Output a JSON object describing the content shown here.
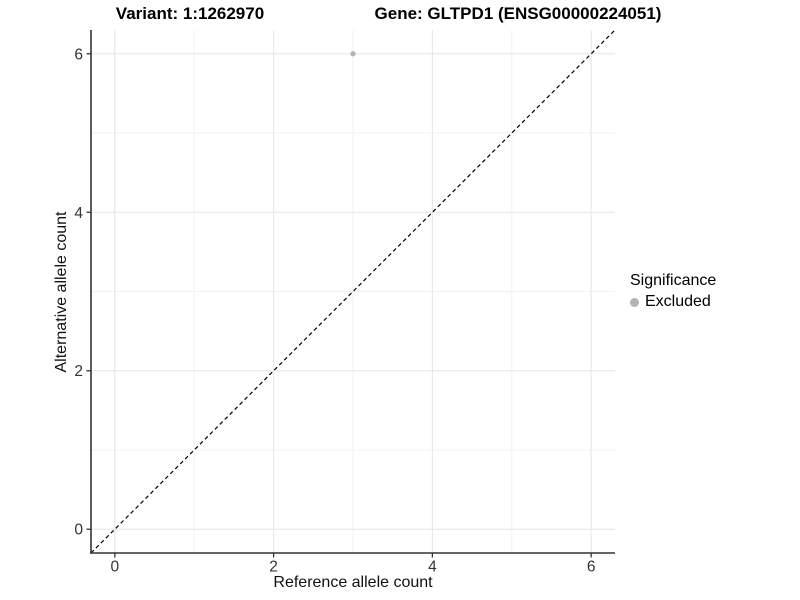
{
  "titles": {
    "variant": "Variant: 1:1262970",
    "gene": "Gene: GLTPD1 (ENSG00000224051)"
  },
  "chart_data": {
    "type": "scatter",
    "xlabel": "Reference allele count",
    "ylabel": "Alternative allele count",
    "xlim": [
      -0.3,
      6.3
    ],
    "ylim": [
      -0.3,
      6.3
    ],
    "x_ticks": [
      0,
      2,
      4,
      6
    ],
    "y_ticks": [
      0,
      2,
      4,
      6
    ],
    "x_minor_ticks": [
      1,
      3,
      5
    ],
    "y_minor_ticks": [
      1,
      3,
      5
    ],
    "grid": true,
    "series": [
      {
        "name": "Excluded",
        "color": "#b4b4b4",
        "points": [
          {
            "x": 3,
            "y": 6
          }
        ]
      }
    ],
    "reference_line": {
      "description": "identity line y = x",
      "from": [
        -0.3,
        -0.3
      ],
      "to": [
        6.3,
        6.3
      ],
      "style": "dashed",
      "color": "#000000"
    },
    "legend": {
      "title": "Significance",
      "position": "right",
      "items": [
        {
          "label": "Excluded",
          "color": "#b4b4b4"
        }
      ]
    }
  },
  "colors": {
    "background": "#ffffff",
    "major_grid": "#e5e5e5",
    "minor_grid": "#f2f2f2",
    "axis_line": "#333333",
    "axis_text": "#333333",
    "point": "#b4b4b4"
  }
}
